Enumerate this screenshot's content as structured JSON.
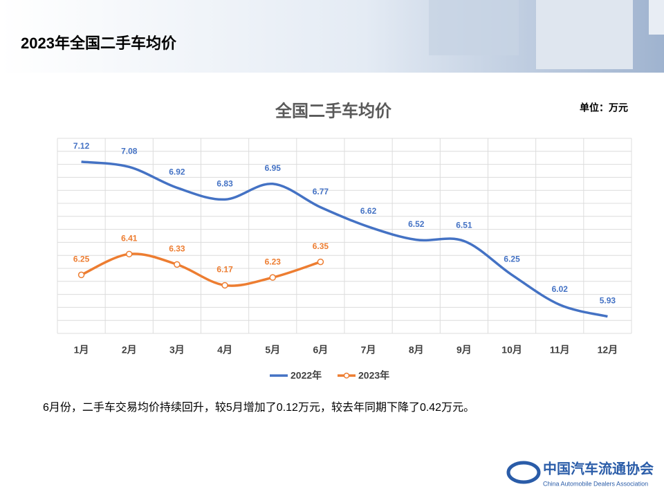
{
  "header": {
    "title": "2023年全国二手车均价"
  },
  "chart_data": {
    "type": "line",
    "title": "全国二手车均价",
    "unit": "单位：万元",
    "categories": [
      "1月",
      "2月",
      "3月",
      "4月",
      "5月",
      "6月",
      "7月",
      "8月",
      "9月",
      "10月",
      "11月",
      "12月"
    ],
    "series": [
      {
        "name": "2022年",
        "color": "#4472c4",
        "values": [
          7.12,
          7.08,
          6.92,
          6.83,
          6.95,
          6.77,
          6.62,
          6.52,
          6.51,
          6.25,
          6.02,
          5.93
        ]
      },
      {
        "name": "2023年",
        "color": "#ed7d31",
        "values": [
          6.25,
          6.41,
          6.33,
          6.17,
          6.23,
          6.35,
          null,
          null,
          null,
          null,
          null,
          null
        ]
      }
    ],
    "ylim": [
      5.8,
      7.3
    ],
    "legend": "bottom"
  },
  "footer": {
    "text": "6月份，二手车交易均价持续回升，较5月增加了0.12万元，较去年同期下降了0.42万元。"
  },
  "logo": {
    "name": "中国汽车流通协会",
    "subtitle": "China Automobile Dealers Association"
  }
}
